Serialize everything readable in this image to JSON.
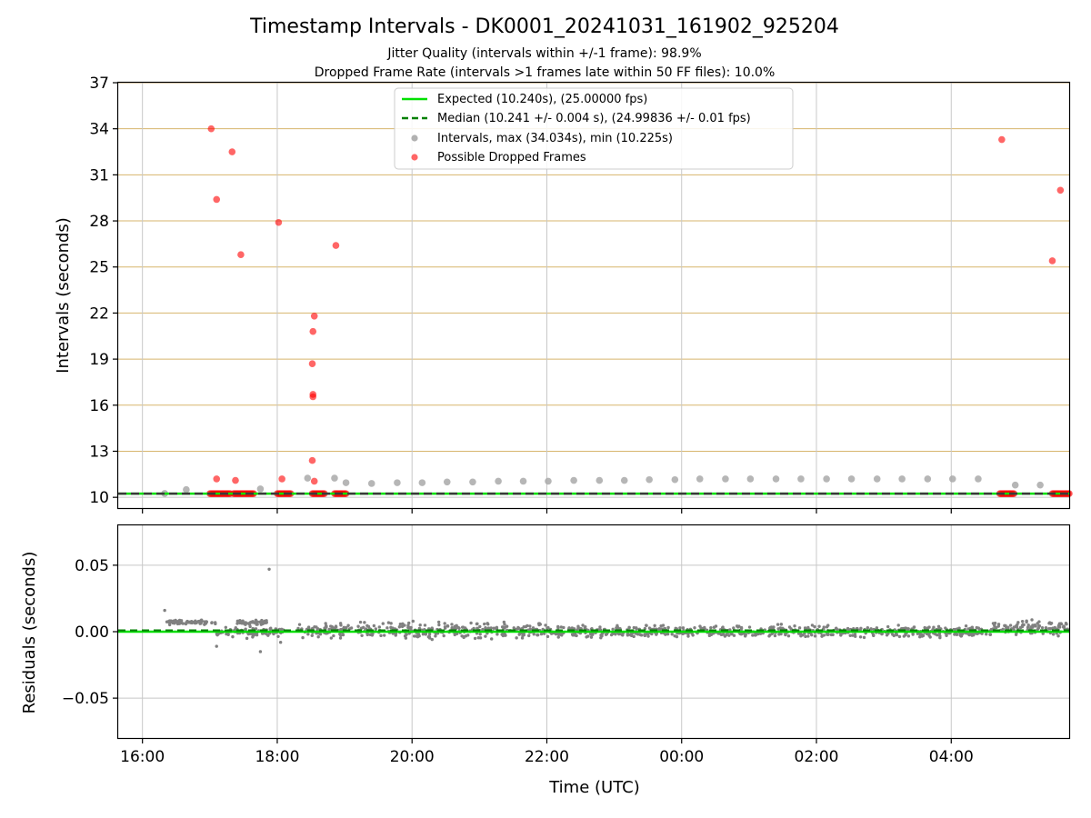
{
  "title": "Timestamp Intervals - DK0001_20241031_161902_925204",
  "subtitle_lines": [
    "Jitter Quality (intervals within +/-1 frame): 98.9%",
    "Dropped Frame Rate (intervals >1 frames late within 50 FF files): 10.0%"
  ],
  "colors": {
    "expected": "#00e000",
    "median": "#008000",
    "interval": "#a9a9a9",
    "dropped": "#ff0000",
    "residual": "#808080",
    "hgrid_top": "#d7b56d",
    "grid": "#c8c8c8"
  },
  "chart_data": [
    {
      "type": "scatter",
      "panel": "intervals",
      "ylabel": "Intervals (seconds)",
      "xlabel": "",
      "x_unit": "hours since 16:00 UTC (2024-10-31)",
      "xlim": [
        -0.36,
        13.75
      ],
      "ylim": [
        9.3,
        37
      ],
      "y_ticks": [
        10,
        13,
        16,
        19,
        22,
        25,
        28,
        31,
        34,
        37
      ],
      "x_ticks": [
        0,
        2,
        4,
        6,
        8,
        10,
        12
      ],
      "x_tick_labels": [
        "16:00",
        "18:00",
        "20:00",
        "22:00",
        "00:00",
        "02:00",
        "04:00"
      ],
      "grid": true,
      "legend_position": "top-center",
      "legend": [
        "Expected (10.240s), (25.00000 fps)",
        "Median (10.241 +/- 0.004 s), (24.99836 +/- 0.01 fps)",
        "Intervals, max (34.034s), min (10.225s)",
        "Possible Dropped Frames"
      ],
      "expected_value": 10.24,
      "median_value": 10.241,
      "intervals": [
        {
          "x": 0.33,
          "y": 10.25
        },
        {
          "x": 0.65,
          "y": 10.5
        },
        {
          "x": 1.75,
          "y": 10.55
        },
        {
          "x": 2.45,
          "y": 11.25
        },
        {
          "x": 2.85,
          "y": 11.25
        },
        {
          "x": 3.02,
          "y": 10.95
        },
        {
          "x": 3.4,
          "y": 10.9
        },
        {
          "x": 3.78,
          "y": 10.95
        },
        {
          "x": 4.15,
          "y": 10.95
        },
        {
          "x": 4.52,
          "y": 11.0
        },
        {
          "x": 4.9,
          "y": 11.0
        },
        {
          "x": 5.28,
          "y": 11.05
        },
        {
          "x": 5.65,
          "y": 11.05
        },
        {
          "x": 6.02,
          "y": 11.05
        },
        {
          "x": 6.4,
          "y": 11.1
        },
        {
          "x": 6.78,
          "y": 11.1
        },
        {
          "x": 7.15,
          "y": 11.1
        },
        {
          "x": 7.52,
          "y": 11.15
        },
        {
          "x": 7.9,
          "y": 11.15
        },
        {
          "x": 8.27,
          "y": 11.2
        },
        {
          "x": 8.65,
          "y": 11.2
        },
        {
          "x": 9.02,
          "y": 11.2
        },
        {
          "x": 9.4,
          "y": 11.2
        },
        {
          "x": 9.77,
          "y": 11.2
        },
        {
          "x": 10.15,
          "y": 11.2
        },
        {
          "x": 10.52,
          "y": 11.2
        },
        {
          "x": 10.9,
          "y": 11.2
        },
        {
          "x": 11.27,
          "y": 11.2
        },
        {
          "x": 11.65,
          "y": 11.2
        },
        {
          "x": 12.02,
          "y": 11.2
        },
        {
          "x": 12.4,
          "y": 11.2
        },
        {
          "x": 12.95,
          "y": 10.8
        },
        {
          "x": 13.32,
          "y": 10.8
        }
      ],
      "dropped": [
        {
          "x": 1.02,
          "y": 34.0
        },
        {
          "x": 1.1,
          "y": 29.4
        },
        {
          "x": 1.1,
          "y": 11.2
        },
        {
          "x": 1.33,
          "y": 32.5
        },
        {
          "x": 1.38,
          "y": 11.1
        },
        {
          "x": 1.46,
          "y": 25.8
        },
        {
          "x": 2.02,
          "y": 27.9
        },
        {
          "x": 2.07,
          "y": 11.2
        },
        {
          "x": 2.55,
          "y": 21.8
        },
        {
          "x": 2.53,
          "y": 20.8
        },
        {
          "x": 2.52,
          "y": 18.7
        },
        {
          "x": 2.53,
          "y": 16.7
        },
        {
          "x": 2.53,
          "y": 16.55
        },
        {
          "x": 2.52,
          "y": 12.4
        },
        {
          "x": 2.55,
          "y": 11.05
        },
        {
          "x": 2.87,
          "y": 26.4
        },
        {
          "x": 12.75,
          "y": 33.3
        },
        {
          "x": 13.5,
          "y": 25.4
        },
        {
          "x": 13.62,
          "y": 30.0
        }
      ],
      "dropped_clusters": [
        {
          "x_start": 1.0,
          "x_end": 1.3,
          "y": 10.24
        },
        {
          "x_start": 1.35,
          "x_end": 1.65,
          "y": 10.24
        },
        {
          "x_start": 2.0,
          "x_end": 2.2,
          "y": 10.24
        },
        {
          "x_start": 2.52,
          "x_end": 2.7,
          "y": 10.24
        },
        {
          "x_start": 2.85,
          "x_end": 3.02,
          "y": 10.24
        },
        {
          "x_start": 12.72,
          "x_end": 12.93,
          "y": 10.24
        },
        {
          "x_start": 13.5,
          "x_end": 13.75,
          "y": 10.24
        }
      ]
    },
    {
      "type": "scatter",
      "panel": "residuals",
      "ylabel": "Residuals (seconds)",
      "xlabel": "Time (UTC)",
      "x_unit": "hours since 16:00 UTC (2024-10-31)",
      "xlim": [
        -0.36,
        13.75
      ],
      "ylim": [
        -0.08,
        0.08
      ],
      "y_ticks": [
        -0.05,
        0.0,
        0.05
      ],
      "y_tick_labels": [
        "−0.05",
        "0.00",
        "0.05"
      ],
      "x_ticks": [
        0,
        2,
        4,
        6,
        8,
        10,
        12
      ],
      "x_tick_labels": [
        "16:00",
        "18:00",
        "20:00",
        "22:00",
        "00:00",
        "02:00",
        "04:00"
      ],
      "grid": true,
      "expected_value": 0.0,
      "median_value": 0.001,
      "outliers": [
        {
          "x": 0.33,
          "y": 0.016
        },
        {
          "x": 1.88,
          "y": 0.047
        },
        {
          "x": 1.1,
          "y": -0.011
        },
        {
          "x": 1.75,
          "y": -0.015
        },
        {
          "x": 1.55,
          "y": -0.005
        },
        {
          "x": 2.05,
          "y": -0.008
        }
      ],
      "residual_bands": [
        {
          "x_start": 0.33,
          "x_end": 1.1,
          "center": 0.007,
          "spread": 0.0015
        },
        {
          "x_start": 1.4,
          "x_end": 1.85,
          "center": 0.007,
          "spread": 0.0015
        },
        {
          "x_start": 1.1,
          "x_end": 2.1,
          "center": 0.0,
          "spread": 0.003
        },
        {
          "x_start": 2.3,
          "x_end": 6.0,
          "center": 0.001,
          "spread": 0.005
        },
        {
          "x_start": 6.0,
          "x_end": 12.6,
          "center": 0.0,
          "spread": 0.004
        },
        {
          "x_start": 12.6,
          "x_end": 13.75,
          "center": 0.003,
          "spread": 0.005
        }
      ]
    }
  ]
}
